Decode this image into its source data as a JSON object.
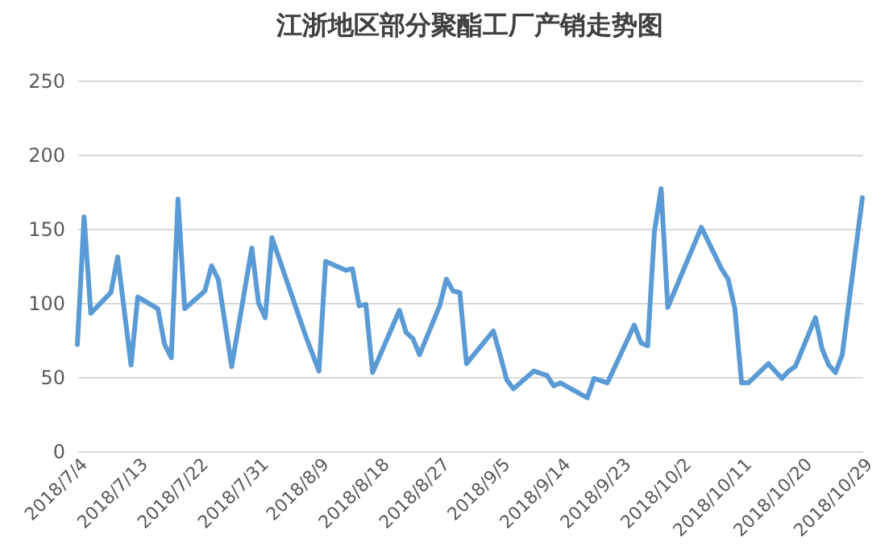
{
  "chart_data": {
    "type": "line",
    "title": "江浙地区部分聚酯工厂产销走势图",
    "x": [
      "2018-07-04",
      "2018-07-05",
      "2018-07-06",
      "2018-07-09",
      "2018-07-10",
      "2018-07-12",
      "2018-07-13",
      "2018-07-16",
      "2018-07-17",
      "2018-07-18",
      "2018-07-19",
      "2018-07-20",
      "2018-07-23",
      "2018-07-24",
      "2018-07-25",
      "2018-07-27",
      "2018-07-30",
      "2018-07-31",
      "2018-08-01",
      "2018-08-02",
      "2018-08-07",
      "2018-08-09",
      "2018-08-10",
      "2018-08-13",
      "2018-08-14",
      "2018-08-15",
      "2018-08-16",
      "2018-08-17",
      "2018-08-21",
      "2018-08-22",
      "2018-08-23",
      "2018-08-24",
      "2018-08-27",
      "2018-08-28",
      "2018-08-29",
      "2018-08-30",
      "2018-08-31",
      "2018-09-04",
      "2018-09-05",
      "2018-09-06",
      "2018-09-07",
      "2018-09-10",
      "2018-09-12",
      "2018-09-13",
      "2018-09-14",
      "2018-09-18",
      "2018-09-19",
      "2018-09-21",
      "2018-09-25",
      "2018-09-26",
      "2018-09-27",
      "2018-09-28",
      "2018-09-29",
      "2018-09-30",
      "2018-10-05",
      "2018-10-08",
      "2018-10-09",
      "2018-10-10",
      "2018-10-11",
      "2018-10-12",
      "2018-10-15",
      "2018-10-17",
      "2018-10-18",
      "2018-10-19",
      "2018-10-22",
      "2018-10-23",
      "2018-10-24",
      "2018-10-25",
      "2018-10-26",
      "2018-10-29"
    ],
    "series": [
      {
        "color": "#5b9bd5",
        "values": [
          72,
          158,
          93,
          107,
          131,
          58,
          104,
          96,
          72,
          63,
          170,
          96,
          108,
          125,
          116,
          57,
          137,
          100,
          90,
          144,
          78,
          54,
          128,
          122,
          123,
          98,
          99,
          53,
          95,
          80,
          76,
          65,
          98,
          116,
          108,
          107,
          59,
          81,
          65,
          48,
          42,
          54,
          51,
          44,
          46,
          36,
          49,
          46,
          85,
          73,
          71,
          148,
          177,
          97,
          151,
          123,
          116,
          96,
          46,
          46,
          59,
          49,
          54,
          57,
          90,
          69,
          58,
          53,
          65,
          171
        ]
      }
    ],
    "xlim": [
      "2018-07-04",
      "2018-10-29"
    ],
    "xticks": [
      {
        "value": "2018-07-04",
        "label": "2018/7/4"
      },
      {
        "value": "2018-07-13",
        "label": "2018/7/13"
      },
      {
        "value": "2018-07-22",
        "label": "2018/7/22"
      },
      {
        "value": "2018-07-31",
        "label": "2018/7/31"
      },
      {
        "value": "2018-08-09",
        "label": "2018/8/9"
      },
      {
        "value": "2018-08-18",
        "label": "2018/8/18"
      },
      {
        "value": "2018-08-27",
        "label": "2018/8/27"
      },
      {
        "value": "2018-09-05",
        "label": "2018/9/5"
      },
      {
        "value": "2018-09-14",
        "label": "2018/9/14"
      },
      {
        "value": "2018-09-23",
        "label": "2018/9/23"
      },
      {
        "value": "2018-10-02",
        "label": "2018/10/2"
      },
      {
        "value": "2018-10-11",
        "label": "2018/10/11"
      },
      {
        "value": "2018-10-20",
        "label": "2018/10/20"
      },
      {
        "value": "2018-10-29",
        "label": "2018/10/29"
      }
    ],
    "ylim": [
      0,
      250
    ],
    "yticks": [
      0,
      50,
      100,
      150,
      200,
      250
    ],
    "grid": "y",
    "line_style": "solid"
  }
}
